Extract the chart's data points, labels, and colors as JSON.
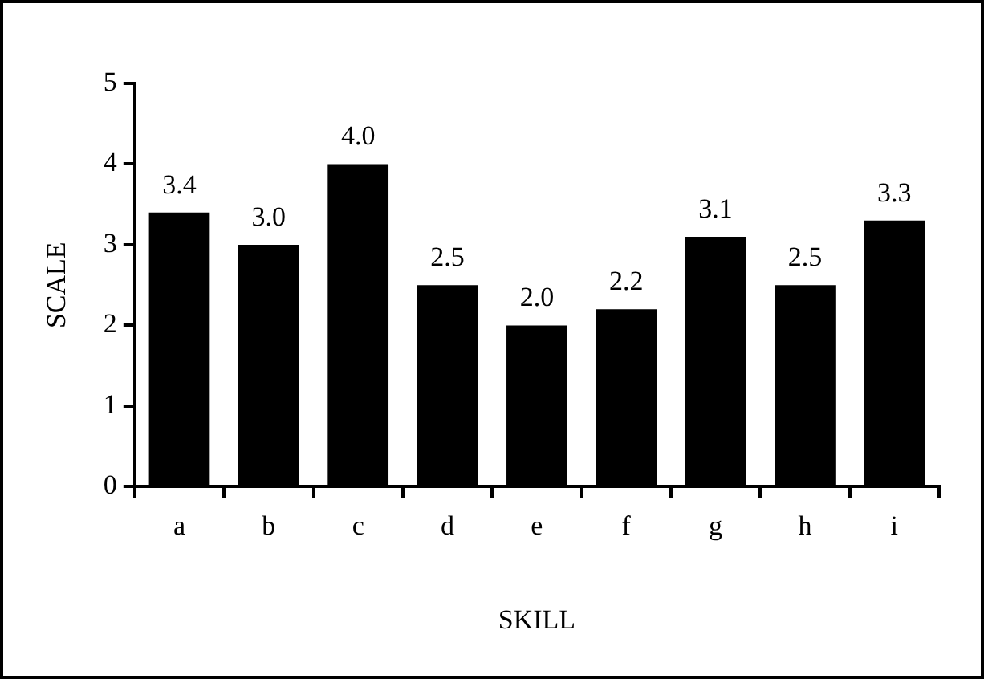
{
  "chart_data": {
    "type": "bar",
    "xlabel": "SKILL",
    "ylabel": "SCALE",
    "categories": [
      "a",
      "b",
      "c",
      "d",
      "e",
      "f",
      "g",
      "h",
      "i"
    ],
    "values": [
      3.4,
      3.0,
      4.0,
      2.5,
      2.0,
      2.2,
      3.1,
      2.5,
      3.3
    ],
    "value_labels": [
      "3.4",
      "3.0",
      "4.0",
      "2.5",
      "2.0",
      "2.2",
      "3.1",
      "2.5",
      "3.3"
    ],
    "color": "#000000",
    "ylim": [
      0,
      5
    ],
    "yticks": [
      0,
      1,
      2,
      3,
      4,
      5
    ],
    "grid": false,
    "legend": false
  }
}
